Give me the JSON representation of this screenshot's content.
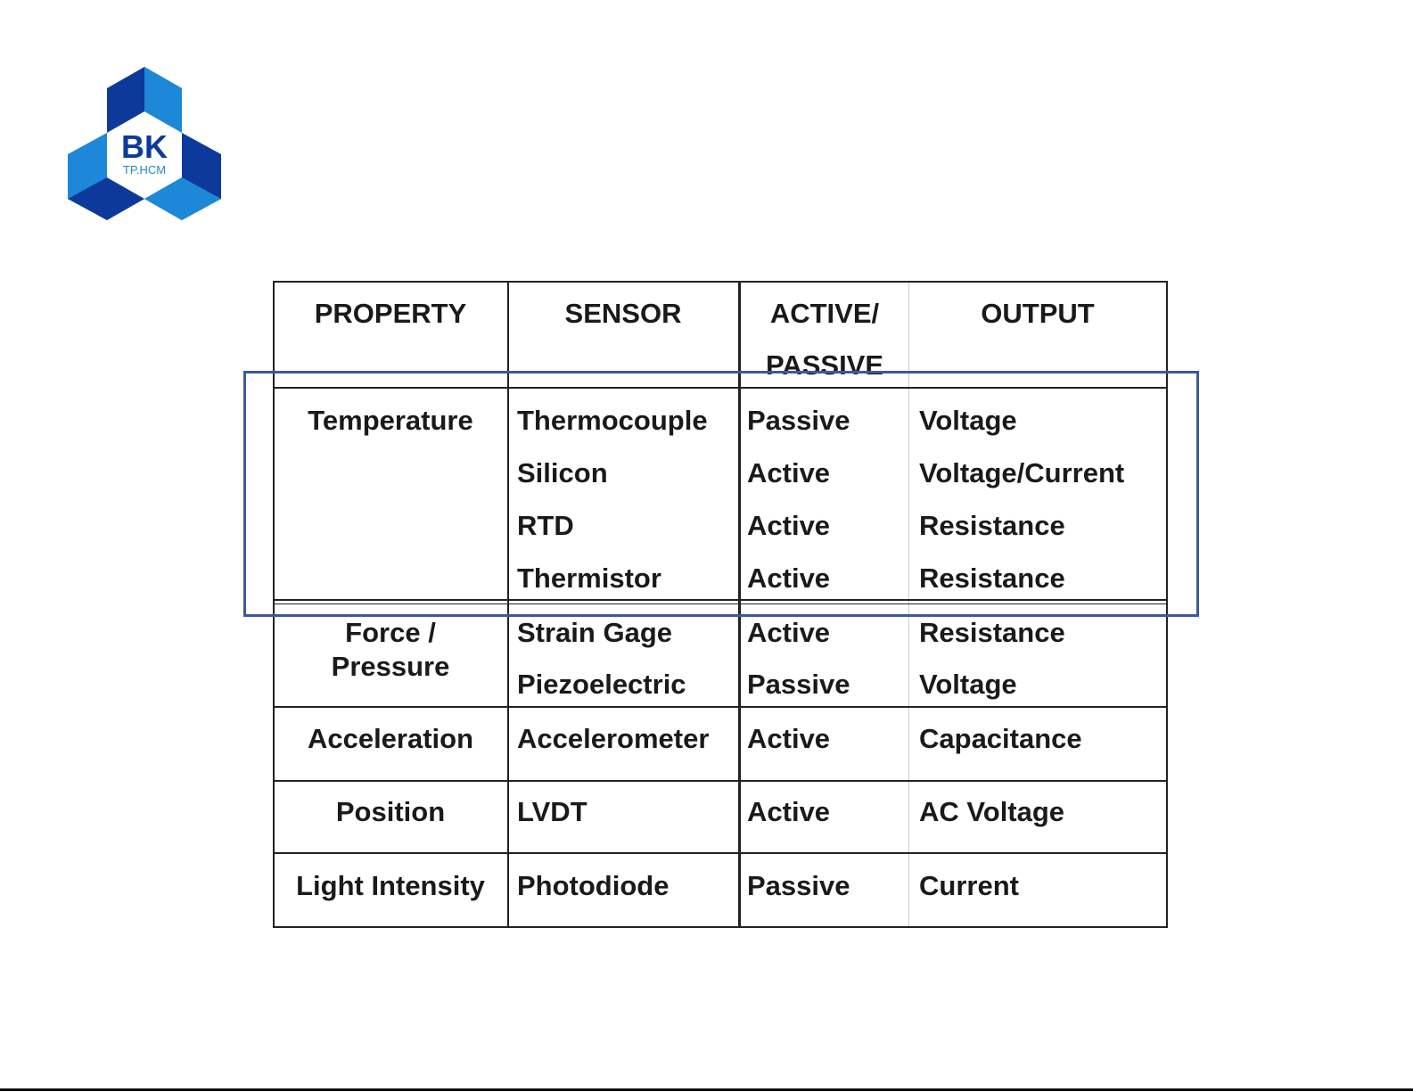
{
  "logo": {
    "text": "BK",
    "subtext": "TP.HCM",
    "colors": {
      "dark": "#0d3a9a",
      "light": "#1e88d8"
    }
  },
  "table": {
    "headers": [
      "PROPERTY",
      "SENSOR",
      "ACTIVE/",
      "PASSIVE",
      "OUTPUT"
    ],
    "rows": [
      {
        "property": "Temperature",
        "sensors": [
          {
            "sensor": "Thermocouple",
            "type": "Passive",
            "output": "Voltage"
          },
          {
            "sensor": "Silicon",
            "type": "Active",
            "output": "Voltage/Current"
          },
          {
            "sensor": "RTD",
            "type": "Active",
            "output": "Resistance"
          },
          {
            "sensor": "Thermistor",
            "type": "Active",
            "output": "Resistance"
          }
        ]
      },
      {
        "property": "Force /",
        "property2": "Pressure",
        "sensors": [
          {
            "sensor": "Strain Gage",
            "type": "Active",
            "output": "Resistance"
          },
          {
            "sensor": "Piezoelectric",
            "type": "Passive",
            "output": "Voltage"
          }
        ]
      },
      {
        "property": "Acceleration",
        "sensors": [
          {
            "sensor": "Accelerometer",
            "type": "Active",
            "output": "Capacitance"
          }
        ]
      },
      {
        "property": "Position",
        "sensors": [
          {
            "sensor": "LVDT",
            "type": "Active",
            "output": "AC Voltage"
          }
        ]
      },
      {
        "property": "Light Intensity",
        "sensors": [
          {
            "sensor": "Photodiode",
            "type": "Passive",
            "output": "Current"
          }
        ]
      }
    ]
  },
  "highlight_color": "#3b5a9a"
}
